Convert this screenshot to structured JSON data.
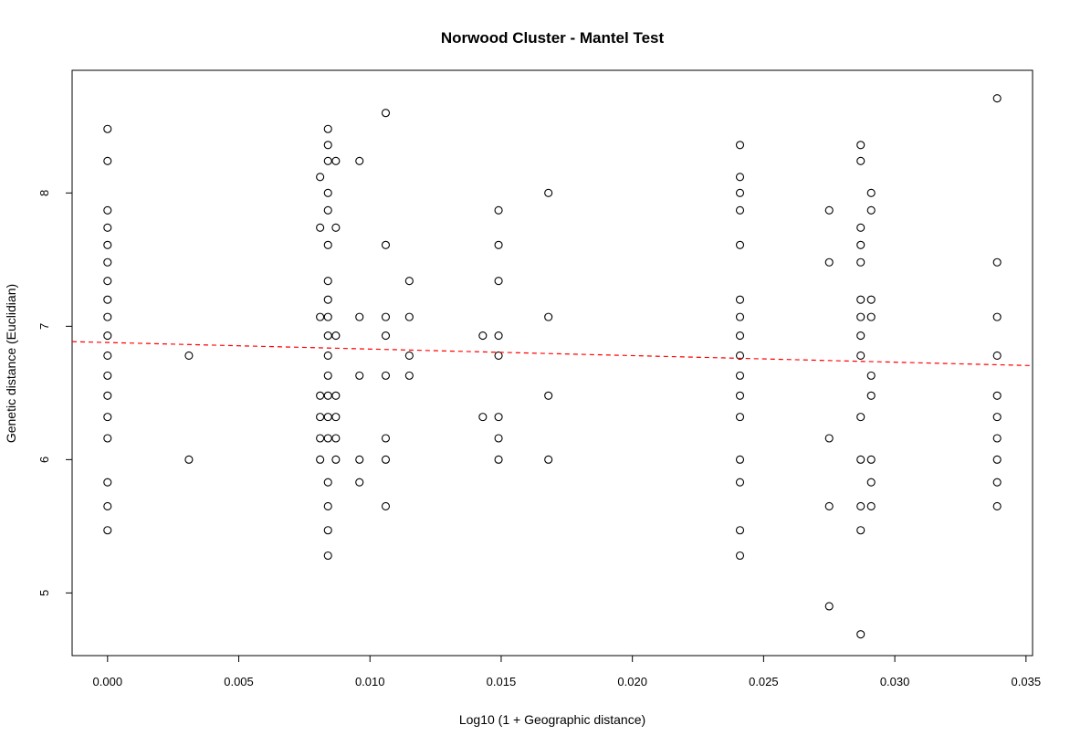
{
  "chart_data": {
    "type": "scatter",
    "title": "Norwood Cluster - Mantel Test",
    "xlabel": "Log10 (1 + Geographic distance)",
    "ylabel": "Genetic distance (Euclidian)",
    "xlim": [
      -0.00135,
      0.03525
    ],
    "ylim": [
      4.53,
      8.92
    ],
    "xticks": [
      0.0,
      0.005,
      0.01,
      0.015,
      0.02,
      0.025,
      0.03,
      0.035
    ],
    "xtick_labels": [
      "0.000",
      "0.005",
      "0.010",
      "0.015",
      "0.020",
      "0.025",
      "0.030",
      "0.035"
    ],
    "yticks": [
      5,
      6,
      7,
      8
    ],
    "ytick_labels": [
      "5",
      "6",
      "7",
      "8"
    ],
    "grid": false,
    "legend": "none",
    "marker": "open-circle",
    "regression_line": {
      "style": "dashed",
      "color": "#ff0000",
      "x": [
        -0.00135,
        0.03525
      ],
      "y": [
        6.885,
        6.705
      ]
    },
    "points": [
      [
        0.0,
        8.48
      ],
      [
        0.0,
        8.24
      ],
      [
        0.0,
        7.87
      ],
      [
        0.0,
        7.74
      ],
      [
        0.0,
        7.61
      ],
      [
        0.0,
        7.48
      ],
      [
        0.0,
        7.34
      ],
      [
        0.0,
        7.2
      ],
      [
        0.0,
        7.07
      ],
      [
        0.0,
        6.93
      ],
      [
        0.0,
        6.78
      ],
      [
        0.0,
        6.63
      ],
      [
        0.0,
        6.48
      ],
      [
        0.0,
        6.32
      ],
      [
        0.0,
        6.16
      ],
      [
        0.0,
        5.83
      ],
      [
        0.0,
        5.65
      ],
      [
        0.0,
        5.47
      ],
      [
        0.0031,
        6.78
      ],
      [
        0.0031,
        6.0
      ],
      [
        0.0081,
        8.12
      ],
      [
        0.0081,
        7.74
      ],
      [
        0.0081,
        7.07
      ],
      [
        0.0081,
        6.48
      ],
      [
        0.0081,
        6.32
      ],
      [
        0.0081,
        6.16
      ],
      [
        0.0081,
        6.0
      ],
      [
        0.0084,
        8.48
      ],
      [
        0.0084,
        8.36
      ],
      [
        0.0084,
        8.24
      ],
      [
        0.0084,
        8.0
      ],
      [
        0.0084,
        7.87
      ],
      [
        0.0084,
        7.61
      ],
      [
        0.0084,
        7.34
      ],
      [
        0.0084,
        7.2
      ],
      [
        0.0084,
        7.07
      ],
      [
        0.0084,
        6.93
      ],
      [
        0.0084,
        6.78
      ],
      [
        0.0084,
        6.63
      ],
      [
        0.0084,
        6.48
      ],
      [
        0.0084,
        6.32
      ],
      [
        0.0084,
        6.16
      ],
      [
        0.0084,
        5.83
      ],
      [
        0.0084,
        5.65
      ],
      [
        0.0084,
        5.47
      ],
      [
        0.0084,
        5.28
      ],
      [
        0.0087,
        8.24
      ],
      [
        0.0087,
        7.74
      ],
      [
        0.0087,
        6.93
      ],
      [
        0.0087,
        6.48
      ],
      [
        0.0087,
        6.32
      ],
      [
        0.0087,
        6.16
      ],
      [
        0.0087,
        6.0
      ],
      [
        0.0096,
        8.24
      ],
      [
        0.0096,
        7.07
      ],
      [
        0.0096,
        6.63
      ],
      [
        0.0096,
        6.0
      ],
      [
        0.0096,
        5.83
      ],
      [
        0.0106,
        8.6
      ],
      [
        0.0106,
        7.61
      ],
      [
        0.0106,
        7.07
      ],
      [
        0.0106,
        6.93
      ],
      [
        0.0106,
        6.63
      ],
      [
        0.0106,
        6.16
      ],
      [
        0.0106,
        6.0
      ],
      [
        0.0106,
        5.65
      ],
      [
        0.0115,
        7.34
      ],
      [
        0.0115,
        7.07
      ],
      [
        0.0115,
        6.78
      ],
      [
        0.0115,
        6.63
      ],
      [
        0.0143,
        6.93
      ],
      [
        0.0143,
        6.32
      ],
      [
        0.0149,
        7.87
      ],
      [
        0.0149,
        7.61
      ],
      [
        0.0149,
        7.34
      ],
      [
        0.0149,
        6.93
      ],
      [
        0.0149,
        6.78
      ],
      [
        0.0149,
        6.32
      ],
      [
        0.0149,
        6.16
      ],
      [
        0.0149,
        6.0
      ],
      [
        0.0168,
        8.0
      ],
      [
        0.0168,
        7.07
      ],
      [
        0.0168,
        6.48
      ],
      [
        0.0168,
        6.0
      ],
      [
        0.0241,
        8.36
      ],
      [
        0.0241,
        8.12
      ],
      [
        0.0241,
        8.0
      ],
      [
        0.0241,
        7.87
      ],
      [
        0.0241,
        7.61
      ],
      [
        0.0241,
        7.2
      ],
      [
        0.0241,
        7.07
      ],
      [
        0.0241,
        6.93
      ],
      [
        0.0241,
        6.78
      ],
      [
        0.0241,
        6.63
      ],
      [
        0.0241,
        6.48
      ],
      [
        0.0241,
        6.32
      ],
      [
        0.0241,
        6.0
      ],
      [
        0.0241,
        5.83
      ],
      [
        0.0241,
        5.47
      ],
      [
        0.0241,
        5.28
      ],
      [
        0.0275,
        7.87
      ],
      [
        0.0275,
        7.48
      ],
      [
        0.0275,
        6.16
      ],
      [
        0.0275,
        5.65
      ],
      [
        0.0275,
        4.9
      ],
      [
        0.0287,
        8.36
      ],
      [
        0.0287,
        8.24
      ],
      [
        0.0287,
        7.74
      ],
      [
        0.0287,
        7.61
      ],
      [
        0.0287,
        7.48
      ],
      [
        0.0287,
        7.2
      ],
      [
        0.0287,
        7.07
      ],
      [
        0.0287,
        6.93
      ],
      [
        0.0287,
        6.78
      ],
      [
        0.0287,
        6.32
      ],
      [
        0.0287,
        6.0
      ],
      [
        0.0287,
        5.65
      ],
      [
        0.0287,
        5.47
      ],
      [
        0.0287,
        4.69
      ],
      [
        0.0291,
        8.0
      ],
      [
        0.0291,
        7.87
      ],
      [
        0.0291,
        7.2
      ],
      [
        0.0291,
        7.07
      ],
      [
        0.0291,
        6.63
      ],
      [
        0.0291,
        6.48
      ],
      [
        0.0291,
        6.0
      ],
      [
        0.0291,
        5.83
      ],
      [
        0.0291,
        5.65
      ],
      [
        0.0339,
        8.71
      ],
      [
        0.0339,
        7.48
      ],
      [
        0.0339,
        7.07
      ],
      [
        0.0339,
        6.78
      ],
      [
        0.0339,
        6.48
      ],
      [
        0.0339,
        6.32
      ],
      [
        0.0339,
        6.16
      ],
      [
        0.0339,
        6.0
      ],
      [
        0.0339,
        5.83
      ],
      [
        0.0339,
        5.65
      ]
    ]
  }
}
